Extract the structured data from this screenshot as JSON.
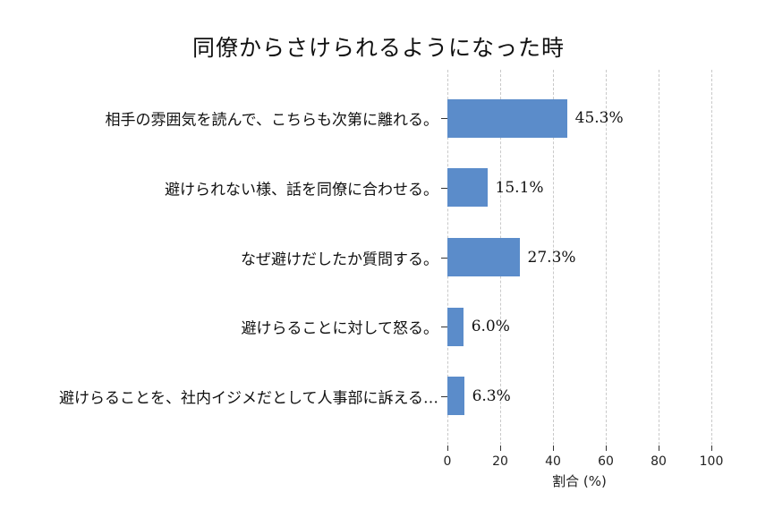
{
  "chart_data": {
    "type": "bar",
    "orientation": "horizontal",
    "title": "同僚からさけられるようになった時",
    "categories": [
      "相手の雰囲気を読んで、こちらも次第に離れる。",
      "避けられない様、話を同僚に合わせる。",
      "なぜ避けだしたか質問する。",
      "避けらることに対して怒る。",
      "避けらることを、社内イジメだとして人事部に訴える…"
    ],
    "values": [
      45.3,
      15.1,
      27.3,
      6.0,
      6.3
    ],
    "value_labels": [
      "45.3%",
      "15.1%",
      "27.3%",
      "6.0%",
      "6.3%"
    ],
    "xlabel": "割合 (%)",
    "xlim": [
      0,
      100
    ],
    "xticks": [
      0,
      20,
      40,
      60,
      80,
      100
    ],
    "grid": "vertical-dashed",
    "legend": "none",
    "bar_color": "#5B8CCA",
    "gridline_color": "#C9C9C9",
    "tick_color": "#333333",
    "text_color": "#111111"
  }
}
